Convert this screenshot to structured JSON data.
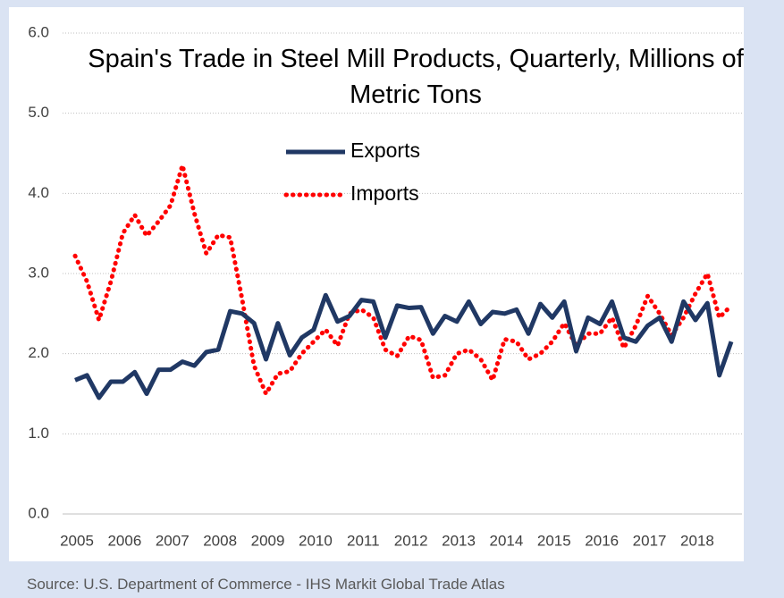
{
  "chart_data": {
    "type": "line",
    "title": "Spain's Trade in Steel Mill Products, Quarterly, Millions of Metric Tons",
    "source": "Source: U.S. Department of Commerce - IHS Markit Global Trade Atlas",
    "categories": [
      "2005",
      null,
      null,
      null,
      "2006",
      null,
      null,
      null,
      "2007",
      null,
      null,
      null,
      "2008",
      null,
      null,
      null,
      "2009",
      null,
      null,
      null,
      "2010",
      null,
      null,
      null,
      "2011",
      null,
      null,
      null,
      "2012",
      null,
      null,
      null,
      "2013",
      null,
      null,
      null,
      "2014",
      null,
      null,
      null,
      "2015",
      null,
      null,
      null,
      "2016",
      null,
      null,
      null,
      "2017",
      null,
      null,
      null,
      "2018",
      null,
      null,
      null
    ],
    "series": [
      {
        "name": "Exports",
        "color": "#203864",
        "style": "solid",
        "values": [
          1.67,
          1.73,
          1.45,
          1.65,
          1.65,
          1.77,
          1.5,
          1.8,
          1.8,
          1.9,
          1.85,
          2.02,
          2.05,
          2.53,
          2.5,
          2.38,
          1.93,
          2.38,
          1.98,
          2.2,
          2.3,
          2.73,
          2.4,
          2.47,
          2.67,
          2.65,
          2.2,
          2.6,
          2.57,
          2.58,
          2.25,
          2.47,
          2.4,
          2.65,
          2.37,
          2.52,
          2.5,
          2.55,
          2.25,
          2.62,
          2.45,
          2.65,
          2.03,
          2.45,
          2.37,
          2.65,
          2.2,
          2.15,
          2.35,
          2.45,
          2.15,
          2.65,
          2.42,
          2.63,
          1.73,
          2.15
        ]
      },
      {
        "name": "Imports",
        "color": "#ff0000",
        "style": "dotted",
        "values": [
          3.22,
          2.9,
          2.42,
          2.9,
          3.5,
          3.73,
          3.47,
          3.65,
          3.85,
          4.35,
          3.75,
          3.25,
          3.48,
          3.45,
          2.68,
          1.85,
          1.5,
          1.75,
          1.78,
          2.0,
          2.15,
          2.3,
          2.1,
          2.5,
          2.55,
          2.45,
          2.05,
          1.97,
          2.22,
          2.17,
          1.7,
          1.73,
          2.0,
          2.05,
          1.93,
          1.67,
          2.18,
          2.15,
          1.93,
          2.0,
          2.15,
          2.38,
          2.1,
          2.25,
          2.25,
          2.45,
          2.07,
          2.35,
          2.72,
          2.5,
          2.23,
          2.45,
          2.75,
          3.0,
          2.45,
          2.6
        ]
      }
    ],
    "ylim": [
      0,
      6
    ],
    "yticks": [
      {
        "value": 0,
        "label": "0.0"
      },
      {
        "value": 1,
        "label": "1.0"
      },
      {
        "value": 2,
        "label": "2.0"
      },
      {
        "value": 3,
        "label": "3.0"
      },
      {
        "value": 4,
        "label": "4.0"
      },
      {
        "value": 5,
        "label": "5.0"
      },
      {
        "value": 6,
        "label": "6.0"
      }
    ],
    "grid": true
  }
}
